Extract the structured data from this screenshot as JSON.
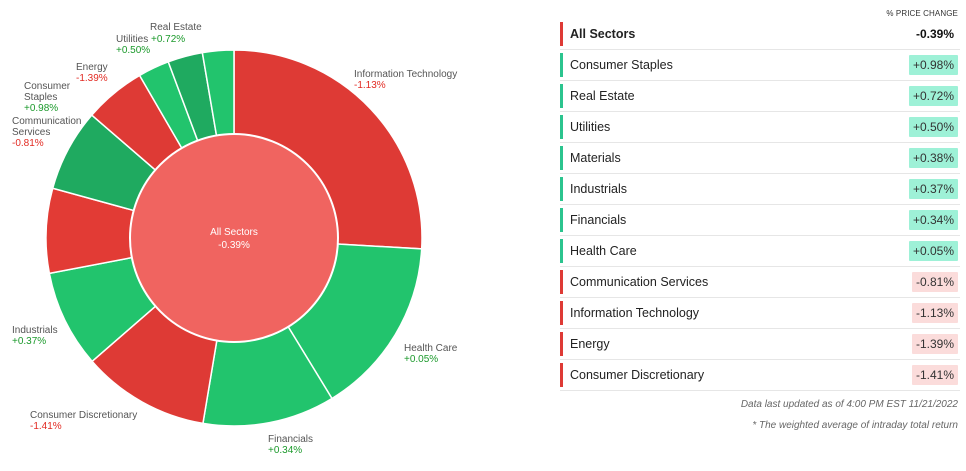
{
  "colors": {
    "pos_slice": "#22c46d",
    "pos_slice_alt": "#1faa60",
    "neg_slice": "#de3a35",
    "neg_slice_alt": "#e23b35",
    "center": "#f06460",
    "pos_text": "#1c9a2c",
    "neg_text": "#e22a22",
    "pos_badge": "#9ef1d7",
    "neg_badge": "#fbdcdb",
    "pos_bar": "#2bc48e",
    "neg_bar": "#de3a35"
  },
  "chart_data": {
    "type": "pie",
    "center": {
      "label": "All Sectors",
      "value": -0.39,
      "value_text": "-0.39%"
    },
    "series": [
      {
        "sector": "Information Technology",
        "value_text": "-1.13%",
        "change": -1.13,
        "weight": 26.0
      },
      {
        "sector": "Health Care",
        "value_text": "+0.05%",
        "change": 0.05,
        "weight": 15.4
      },
      {
        "sector": "Financials",
        "value_text": "+0.34%",
        "change": 0.34,
        "weight": 11.4
      },
      {
        "sector": "Consumer Discretionary",
        "value_text": "-1.41%",
        "change": -1.41,
        "weight": 11.0
      },
      {
        "sector": "Industrials",
        "value_text": "+0.37%",
        "change": 0.37,
        "weight": 8.4
      },
      {
        "sector": "Communication Services",
        "value_text": "-0.81%",
        "change": -0.81,
        "weight": 7.3
      },
      {
        "sector": "Consumer Staples",
        "value_text": "+0.98%",
        "change": 0.98,
        "weight": 7.1
      },
      {
        "sector": "Energy",
        "value_text": "-1.39%",
        "change": -1.39,
        "weight": 5.3
      },
      {
        "sector": "Materials",
        "value_text": "+0.38%",
        "change": 0.38,
        "weight": 2.7
      },
      {
        "sector": "Utilities",
        "value_text": "+0.50%",
        "change": 0.5,
        "weight": 3.0
      },
      {
        "sector": "Real Estate",
        "value_text": "+0.72%",
        "change": 0.72,
        "weight": 2.7
      }
    ]
  },
  "chart_labels": [
    {
      "name": "Information Technology",
      "value": "-1.13%",
      "sign": "neg"
    },
    {
      "name": "Health Care",
      "value": "+0.05%",
      "sign": "pos"
    },
    {
      "name": "Financials",
      "value": "+0.34%",
      "sign": "pos"
    },
    {
      "name": "Consumer Discretionary",
      "value": "-1.41%",
      "sign": "neg"
    },
    {
      "name": "Industrials",
      "value": "+0.37%",
      "sign": "pos"
    },
    {
      "name": "Communication Services",
      "value": "-0.81%",
      "sign": "neg"
    },
    {
      "name": "Consumer Staples",
      "value": "+0.98%",
      "sign": "pos"
    },
    {
      "name": "Energy",
      "value": "-1.39%",
      "sign": "neg"
    },
    {
      "name": "Utilities",
      "value": "+0.50%",
      "sign": "pos"
    },
    {
      "name": "Real Estate",
      "value": "+0.72%",
      "sign": "pos"
    }
  ],
  "table": {
    "header": "% PRICE CHANGE",
    "rows": [
      {
        "name": "All Sectors",
        "change": "-0.39%",
        "sign": "neg",
        "total": true
      },
      {
        "name": "Consumer Staples",
        "change": "+0.98%",
        "sign": "pos"
      },
      {
        "name": "Real Estate",
        "change": "+0.72%",
        "sign": "pos"
      },
      {
        "name": "Utilities",
        "change": "+0.50%",
        "sign": "pos"
      },
      {
        "name": "Materials",
        "change": "+0.38%",
        "sign": "pos"
      },
      {
        "name": "Industrials",
        "change": "+0.37%",
        "sign": "pos"
      },
      {
        "name": "Financials",
        "change": "+0.34%",
        "sign": "pos"
      },
      {
        "name": "Health Care",
        "change": "+0.05%",
        "sign": "pos"
      },
      {
        "name": "Communication Services",
        "change": "-0.81%",
        "sign": "neg"
      },
      {
        "name": "Information Technology",
        "change": "-1.13%",
        "sign": "neg"
      },
      {
        "name": "Energy",
        "change": "-1.39%",
        "sign": "neg"
      },
      {
        "name": "Consumer Discretionary",
        "change": "-1.41%",
        "sign": "neg"
      }
    ]
  },
  "notes": {
    "updated": "Data last updated as of 4:00 PM EST 11/21/2022",
    "footnote": "* The weighted average of intraday total return"
  }
}
